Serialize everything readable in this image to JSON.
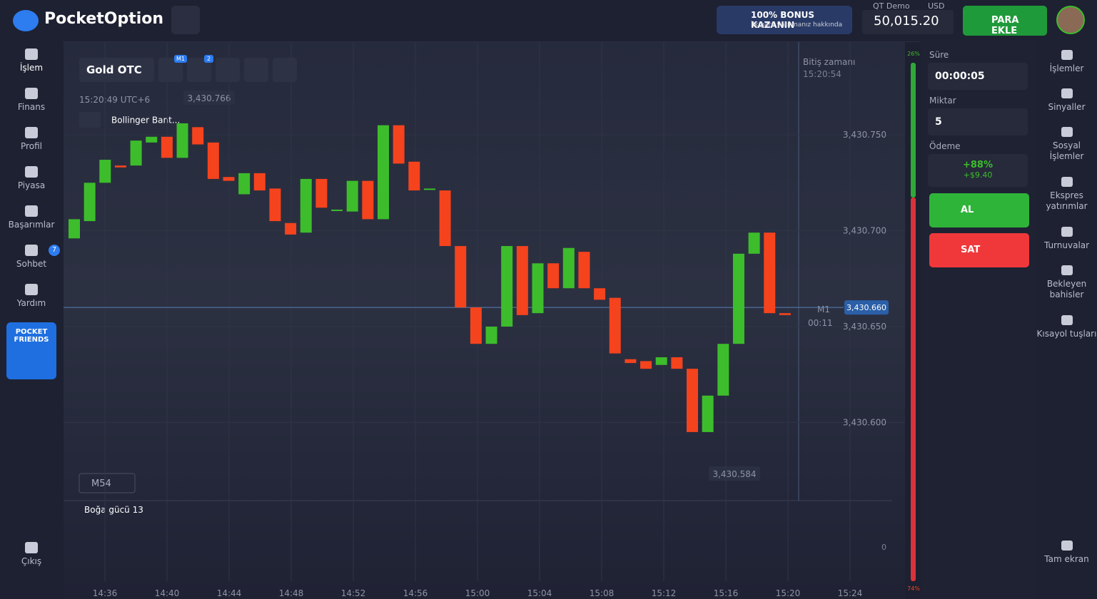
{
  "header": {
    "brand": "PocketOption",
    "bonus_title": "100% BONUS KAZANIN",
    "bonus_sub": "İlk para yatırmanız hakkında",
    "account_type": "QT Demo",
    "currency": "USD",
    "balance": "50,015.20",
    "deposit": "PARA EKLE"
  },
  "sidebar": {
    "items": [
      {
        "label": "İşlem"
      },
      {
        "label": "Finans"
      },
      {
        "label": "Profil"
      },
      {
        "label": "Piyasa"
      },
      {
        "label": "Başarımlar"
      },
      {
        "label": "Sohbet",
        "badge": "7"
      },
      {
        "label": "Yardım"
      }
    ],
    "promo": "POCKET FRIENDS",
    "exit": "Çıkış"
  },
  "toolbar": {
    "asset": "Gold OTC",
    "timeframe_badge": "M1",
    "indicators_badge": "2"
  },
  "chart": {
    "clock": "15:20:49 UTC+6",
    "indicator": "Bollinger Bant...",
    "high_label": "3,430.766",
    "low_label": "3,430.584",
    "current": {
      "value": 3430.66,
      "label": "3,430.660"
    },
    "expiry_title": "Bitiş zamanı",
    "expiry_time": "15:20:54",
    "timeframe": "M1",
    "countdown": "00:11",
    "zoom": "M54",
    "oscillator": "Boğa gücü 13",
    "oscillator_zero": 0,
    "ylim": [
      3430.56,
      3430.798
    ],
    "yticks": [
      {
        "value": 3430.75,
        "label": "3,430.750"
      },
      {
        "value": 3430.7,
        "label": "3,430.700"
      },
      {
        "value": 3430.65,
        "label": "3,430.650"
      },
      {
        "value": 3430.6,
        "label": "3,430.600"
      }
    ],
    "time_labels": [
      "14:36",
      "14:40",
      "14:44",
      "14:48",
      "14:52",
      "14:56",
      "15:00",
      "15:04",
      "15:08",
      "15:12",
      "15:16",
      "15:20",
      "15:24"
    ],
    "up_color": "#3dbd2b",
    "down_color": "#f5431d",
    "candles": [
      {
        "open": 3430.696,
        "close": 3430.706
      },
      {
        "open": 3430.705,
        "close": 3430.725
      },
      {
        "open": 3430.725,
        "close": 3430.737
      },
      {
        "open": 3430.734,
        "close": 3430.733
      },
      {
        "open": 3430.734,
        "close": 3430.747
      },
      {
        "open": 3430.746,
        "close": 3430.749
      },
      {
        "open": 3430.749,
        "close": 3430.738
      },
      {
        "open": 3430.738,
        "close": 3430.756
      },
      {
        "open": 3430.754,
        "close": 3430.745
      },
      {
        "open": 3430.746,
        "close": 3430.727
      },
      {
        "open": 3430.728,
        "close": 3430.726
      },
      {
        "open": 3430.719,
        "close": 3430.73
      },
      {
        "open": 3430.73,
        "close": 3430.721
      },
      {
        "open": 3430.722,
        "close": 3430.705
      },
      {
        "open": 3430.704,
        "close": 3430.698
      },
      {
        "open": 3430.699,
        "close": 3430.727
      },
      {
        "open": 3430.727,
        "close": 3430.712
      },
      {
        "open": 3430.711,
        "close": 3430.711
      },
      {
        "open": 3430.71,
        "close": 3430.726
      },
      {
        "open": 3430.726,
        "close": 3430.706
      },
      {
        "open": 3430.706,
        "close": 3430.755
      },
      {
        "open": 3430.755,
        "close": 3430.735
      },
      {
        "open": 3430.736,
        "close": 3430.721
      },
      {
        "open": 3430.722,
        "close": 3430.722
      },
      {
        "open": 3430.721,
        "close": 3430.692
      },
      {
        "open": 3430.692,
        "close": 3430.66
      },
      {
        "open": 3430.66,
        "close": 3430.641
      },
      {
        "open": 3430.641,
        "close": 3430.65
      },
      {
        "open": 3430.65,
        "close": 3430.692
      },
      {
        "open": 3430.692,
        "close": 3430.656
      },
      {
        "open": 3430.657,
        "close": 3430.683
      },
      {
        "open": 3430.683,
        "close": 3430.67
      },
      {
        "open": 3430.67,
        "close": 3430.691
      },
      {
        "open": 3430.689,
        "close": 3430.67
      },
      {
        "open": 3430.67,
        "close": 3430.664
      },
      {
        "open": 3430.665,
        "close": 3430.636
      },
      {
        "open": 3430.633,
        "close": 3430.631
      },
      {
        "open": 3430.632,
        "close": 3430.628
      },
      {
        "open": 3430.63,
        "close": 3430.634
      },
      {
        "open": 3430.634,
        "close": 3430.628
      },
      {
        "open": 3430.628,
        "close": 3430.595
      },
      {
        "open": 3430.595,
        "close": 3430.614
      },
      {
        "open": 3430.614,
        "close": 3430.641
      },
      {
        "open": 3430.641,
        "close": 3430.688
      },
      {
        "open": 3430.688,
        "close": 3430.699
      },
      {
        "open": 3430.699,
        "close": 3430.657
      },
      {
        "open": 3430.657,
        "close": 3430.656
      }
    ],
    "sentiment": {
      "values": [
        26,
        74
      ],
      "value_labels": [
        "26%",
        "74%"
      ]
    }
  },
  "order": {
    "duration_label": "Süre",
    "duration": "00:00:05",
    "amount_label": "Miktar",
    "amount": "5",
    "payout_label": "Ödeme",
    "payout_pct": "+88%",
    "payout_value": "+$9.40",
    "buy": "AL",
    "sell": "SAT"
  },
  "right_menu": [
    "İşlemler",
    "Sinyaller",
    "Sosyal İşlemler",
    "Ekspres yatırımlar",
    "Turnuvalar",
    "Bekleyen bahisler",
    "Kısayol tuşları"
  ],
  "fullscreen": "Tam ekran"
}
